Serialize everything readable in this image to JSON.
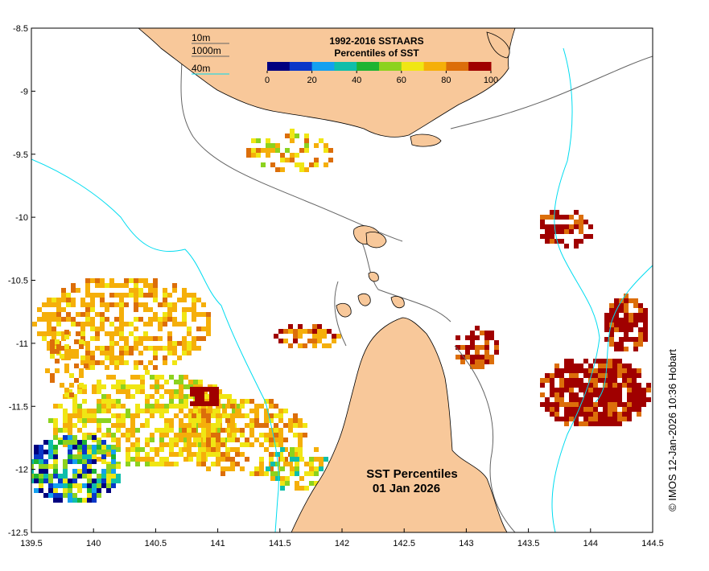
{
  "map": {
    "x_ticks": [
      "139.5",
      "140",
      "140.5",
      "141",
      "141.5",
      "142",
      "142.5",
      "143",
      "143.5",
      "144",
      "144.5"
    ],
    "y_ticks": [
      "-8.5",
      "-9",
      "-9.5",
      "-10",
      "-10.5",
      "-11",
      "-11.5",
      "-12",
      "-12.5"
    ],
    "colorbar": {
      "title_line1": "1992-2016 SSTAARS",
      "title_line2": "Percentiles of SST",
      "labels": [
        "0",
        "20",
        "40",
        "60",
        "80",
        "100"
      ],
      "colors": [
        "#000080",
        "#0a37c8",
        "#14a0f0",
        "#0fbeaa",
        "#1eb432",
        "#8cd21e",
        "#f0e614",
        "#f5af0a",
        "#dc6e0a",
        "#a00000"
      ]
    },
    "depth_legend": [
      {
        "label": "10m",
        "color": "#646464"
      },
      {
        "label": "1000m",
        "color": "#646464"
      },
      {
        "label": "40m",
        "color": "#00dcf0"
      }
    ],
    "land_color": "#f8c89a",
    "title_line1": "SST Percentiles",
    "title_line2": "01 Jan 2026",
    "credit": "© IMOS 12-Jan-2026 10:36 Hobart"
  }
}
